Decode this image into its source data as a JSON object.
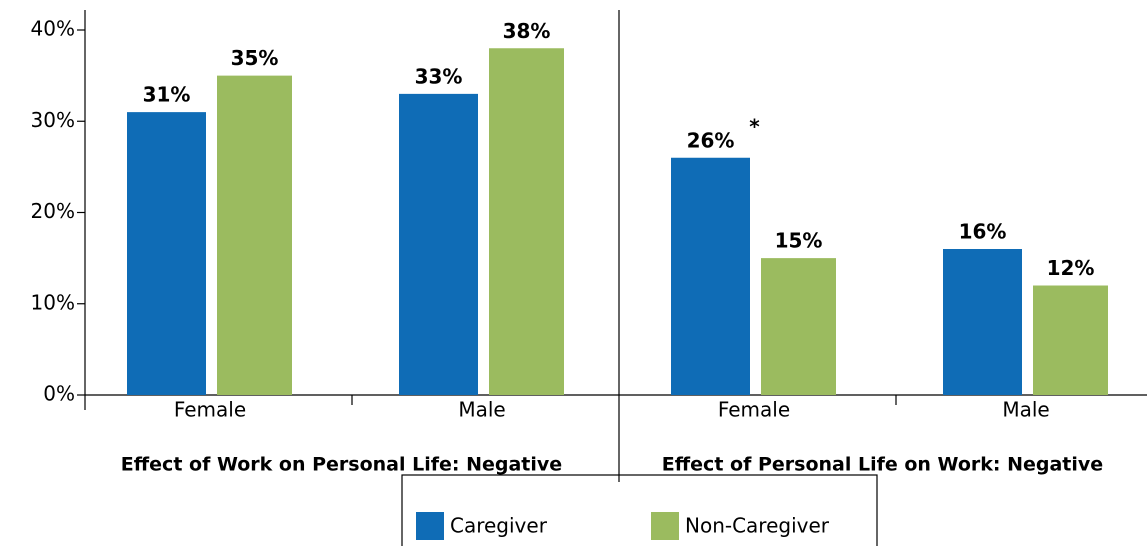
{
  "chart_data": {
    "type": "bar",
    "categories": [
      "Female",
      "Male",
      "Female",
      "Male"
    ],
    "groups": [
      "Effect of Work on Personal Life: Negative",
      "Effect of Personal Life on Work: Negative"
    ],
    "series": [
      {
        "name": "Caregiver",
        "color": "#0f6cb6",
        "values": [
          31,
          33,
          26,
          16
        ],
        "value_labels": [
          "31%",
          "33%",
          "26%",
          "16%"
        ],
        "notes": [
          null,
          null,
          "*",
          null
        ]
      },
      {
        "name": "Non-Caregiver",
        "color": "#9bbb5f",
        "values": [
          35,
          38,
          15,
          12
        ],
        "value_labels": [
          "35%",
          "38%",
          "15%",
          "12%"
        ]
      }
    ],
    "ylim": [
      0,
      40
    ],
    "yticks": [
      {
        "value": 0,
        "label": "0%"
      },
      {
        "value": 10,
        "label": "10%"
      },
      {
        "value": 20,
        "label": "20%"
      },
      {
        "value": 30,
        "label": "30%"
      },
      {
        "value": 40,
        "label": "40%"
      }
    ],
    "legend": "bottom"
  }
}
